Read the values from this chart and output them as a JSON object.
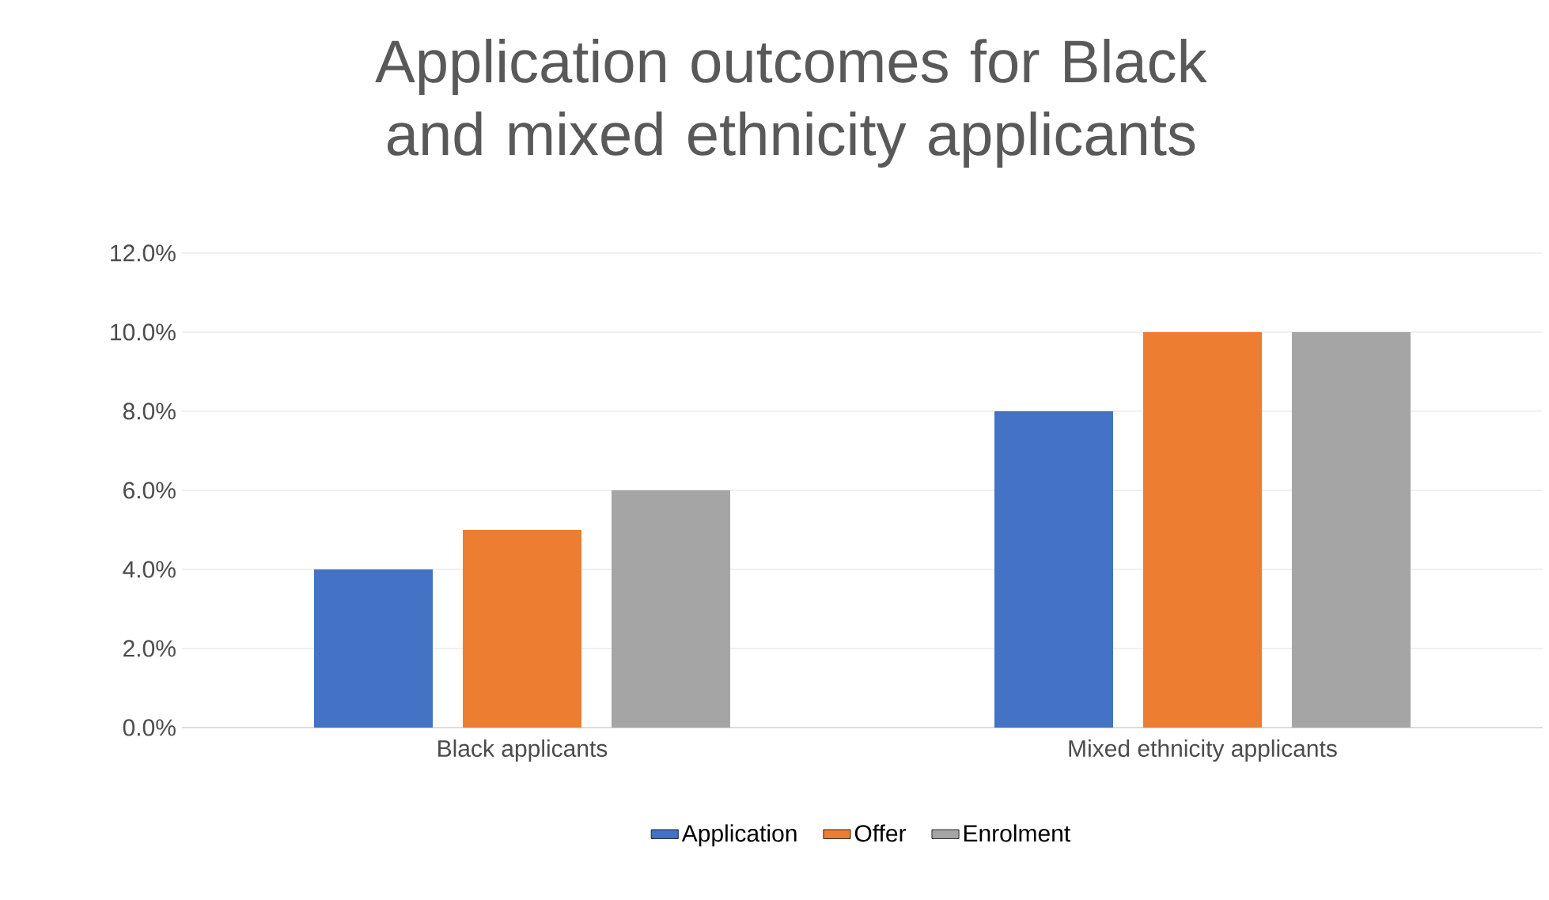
{
  "chart_data": {
    "type": "bar",
    "title": "Application outcomes for Black and mixed ethnicity applicants",
    "categories": [
      "Black applicants",
      "Mixed ethnicity applicants"
    ],
    "series": [
      {
        "name": "Application",
        "color": "#4472c4",
        "values": [
          4,
          8
        ]
      },
      {
        "name": "Offer",
        "color": "#ed7d31",
        "values": [
          5,
          10
        ]
      },
      {
        "name": "Enrolment",
        "color": "#a5a5a5",
        "values": [
          6,
          10
        ]
      }
    ],
    "ylim": [
      0,
      12
    ],
    "yticks": [
      {
        "value": 0,
        "label": "0.0%"
      },
      {
        "value": 2,
        "label": "2.0%"
      },
      {
        "value": 4,
        "label": "4.0%"
      },
      {
        "value": 6,
        "label": "6.0%"
      },
      {
        "value": 8,
        "label": "8.0%"
      },
      {
        "value": 10,
        "label": "10.0%"
      },
      {
        "value": 12,
        "label": "12.0%"
      }
    ],
    "grid": "y",
    "legend": "bottom"
  }
}
